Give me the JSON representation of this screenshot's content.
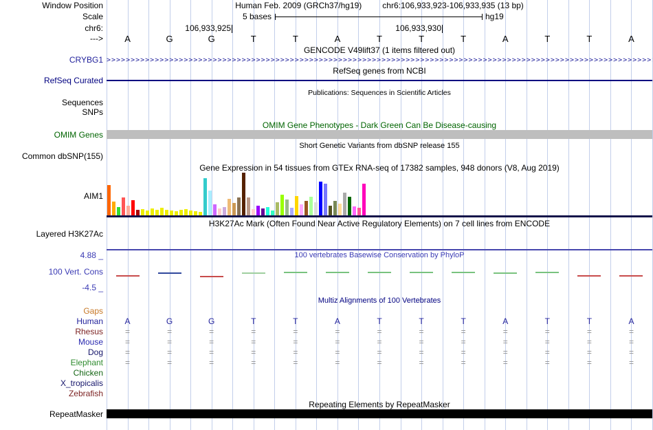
{
  "header": {
    "window_position_label": "Window Position",
    "assembly": "Human Feb. 2009 (GRCh37/hg19)",
    "position": "chr6:106,933,923-106,933,935 (13 bp)",
    "scale_label": "Scale",
    "scale_text": "5 bases",
    "assembly_short": "hg19",
    "chrom_label": "chr6:",
    "tick_labels": [
      "106,933,925",
      "106,933,930"
    ],
    "strand_label": "--->",
    "bases": [
      "A",
      "G",
      "G",
      "T",
      "T",
      "A",
      "T",
      "T",
      "T",
      "A",
      "T",
      "T",
      "A"
    ]
  },
  "tracks": {
    "gencode": {
      "title": "GENCODE V49lift37 (1 items filtered out)",
      "gene": "CRYBG1"
    },
    "refseq": {
      "title": "RefSeq genes from NCBI",
      "label": "RefSeq Curated"
    },
    "publications": {
      "title": "Publications: Sequences in Scientific Articles",
      "label_sequences": "Sequences",
      "label_snps": "SNPs"
    },
    "omim": {
      "title": "OMIM Gene Phenotypes - Dark Green Can Be Disease-causing",
      "label": "OMIM Genes"
    },
    "dbsnp": {
      "title": "Short Genetic Variants from dbSNP release 155",
      "label": "Common dbSNP(155)"
    },
    "gtex": {
      "title": "Gene Expression in 54 tissues from GTEx RNA-seq of 17382 samples, 948 donors (V8, Aug 2019)",
      "label": "AIM1"
    },
    "h3k27ac": {
      "title": "H3K27Ac Mark (Often Found Near Active Regulatory Elements) on 7 cell lines from ENCODE",
      "label": "Layered H3K27Ac"
    },
    "phylop": {
      "title": "100 vertebrates Basewise Conservation by PhyloP",
      "label": "100 Vert. Cons",
      "scale_max": "4.88 _",
      "scale_min": "-4.5 _"
    },
    "multiz": {
      "title": "Multiz Alignments of 100 Vertebrates",
      "align_glyph": "=",
      "species": [
        {
          "name": "Gaps",
          "color": "#C77826",
          "render": "none"
        },
        {
          "name": "Human",
          "color": "#22229C",
          "render": "bases"
        },
        {
          "name": "Rhesus",
          "color": "#7A1F1F",
          "render": "align"
        },
        {
          "name": "Mouse",
          "color": "#2929B0",
          "render": "align"
        },
        {
          "name": "Dog",
          "color": "#16166B",
          "render": "align"
        },
        {
          "name": "Elephant",
          "color": "#2E8B2E",
          "render": "align"
        },
        {
          "name": "Chicken",
          "color": "#156615",
          "render": "none"
        },
        {
          "name": "X_tropicalis",
          "color": "#16166B",
          "render": "none"
        },
        {
          "name": "Zebrafish",
          "color": "#7A1F1F",
          "render": "none"
        }
      ]
    },
    "repeatmasker": {
      "title": "Repeating Elements by RepeatMasker",
      "label": "RepeatMasker"
    }
  },
  "colors": {
    "gene_blue": "#22229C",
    "refseq_navy": "#000080",
    "omim_green": "#006400",
    "omim_bar": "#BEBEBE",
    "phylop_blue": "#3A3AB4",
    "multiz_blue": "#000080",
    "grid": "#C2CEEA",
    "gtex_baseline": "#14144A",
    "h3k27ac_line": "#4747AE",
    "repeat_bar": "#000000",
    "align_gray": "#909090"
  },
  "chart_data": [
    {
      "type": "bar",
      "title": "GTEx gene expression across 54 tissues (AIM1)",
      "n_bars": 54,
      "unit": "estimated_px_height",
      "heights": [
        44,
        20,
        12,
        26,
        14,
        22,
        8,
        9,
        7,
        10,
        8,
        11,
        8,
        7,
        6,
        8,
        9,
        7,
        6,
        5,
        54,
        36,
        16,
        10,
        12,
        24,
        18,
        26,
        62,
        26,
        9,
        14,
        10,
        12,
        7,
        19,
        30,
        23,
        11,
        28,
        16,
        21,
        27,
        19,
        49,
        46,
        14,
        21,
        17,
        33,
        27,
        13,
        11,
        46
      ],
      "colors": [
        "#FF6600",
        "#FFAA00",
        "#33DD33",
        "#FF5555",
        "#FFAA99",
        "#FF0000",
        "#AA0000",
        "#EEEE00",
        "#EEEE00",
        "#EEEE00",
        "#EEEE00",
        "#EEEE00",
        "#EEEE00",
        "#EEEE00",
        "#EEEE00",
        "#EEEE00",
        "#EEEE00",
        "#EEEE00",
        "#EEEE00",
        "#EEEE00",
        "#33CCCC",
        "#AAEEFF",
        "#CC66FF",
        "#FFCCCC",
        "#CCAADD",
        "#EEBB77",
        "#CC9955",
        "#8B7355",
        "#552200",
        "#BB9988",
        "#FFCCCC",
        "#9900FF",
        "#660099",
        "#22FFDD",
        "#33FFC2",
        "#AABB66",
        "#99FF00",
        "#99BB88",
        "#AAAAFF",
        "#FFD700",
        "#FFAAFF",
        "#995522",
        "#AAFF99",
        "#DDDDDD",
        "#0000FF",
        "#7777FF",
        "#555522",
        "#778855",
        "#FFDD99",
        "#AAAAAA",
        "#006600",
        "#FF66FF",
        "#FF5599",
        "#FF00BB"
      ]
    },
    {
      "type": "line",
      "title": "100 vertebrates Basewise Conservation by PhyloP",
      "ylim": [
        -4.5,
        4.88
      ],
      "x_bases": [
        "A",
        "G",
        "G",
        "T",
        "T",
        "A",
        "T",
        "T",
        "T",
        "A",
        "T",
        "T",
        "A"
      ],
      "values": [
        -0.6,
        0.3,
        -0.8,
        0.25,
        0.4,
        0.35,
        0.45,
        0.4,
        0.4,
        0.3,
        0.35,
        -0.6,
        -0.5
      ],
      "point_colors": [
        "#C84B4B",
        "#30489C",
        "#C84B4B",
        "#9FCF9F",
        "#79C27E",
        "#79C27E",
        "#79C27E",
        "#79C27E",
        "#79C27E",
        "#79C27E",
        "#79C27E",
        "#C84B4B",
        "#C84B4B"
      ]
    }
  ]
}
